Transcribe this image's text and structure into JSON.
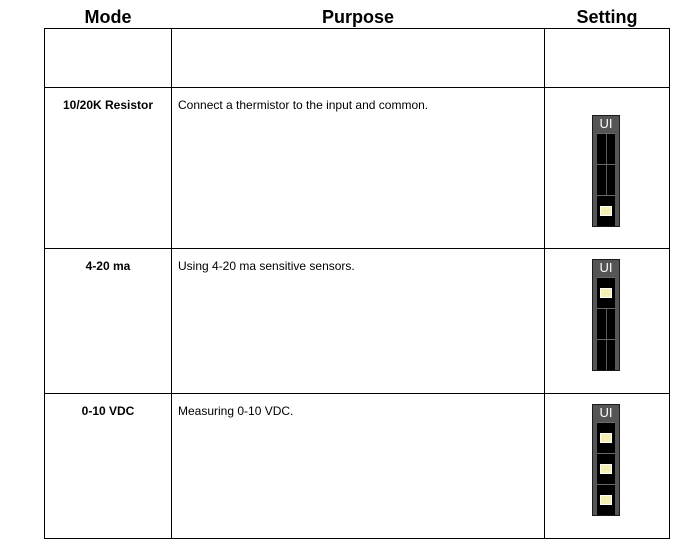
{
  "table": {
    "headers": {
      "mode": "Mode",
      "purpose": "Purpose",
      "setting": "Setting"
    },
    "rows": [
      {
        "mode": "10/20K Resistor",
        "purpose": "Connect a thermistor to the input and common.",
        "switch_label": "UI",
        "switch_positions": [
          false,
          false,
          true
        ]
      },
      {
        "mode": "4-20 ma",
        "purpose": "Using 4-20 ma sensitive sensors.",
        "switch_label": "UI",
        "switch_positions": [
          true,
          false,
          false
        ]
      },
      {
        "mode": "0-10 VDC",
        "purpose": "Measuring 0-10 VDC.",
        "switch_label": "UI",
        "switch_positions": [
          true,
          true,
          true
        ]
      }
    ]
  },
  "colors": {
    "switch_body": "#555555",
    "switch_slot": "#000000",
    "switch_knob": "#f4f0b4"
  }
}
